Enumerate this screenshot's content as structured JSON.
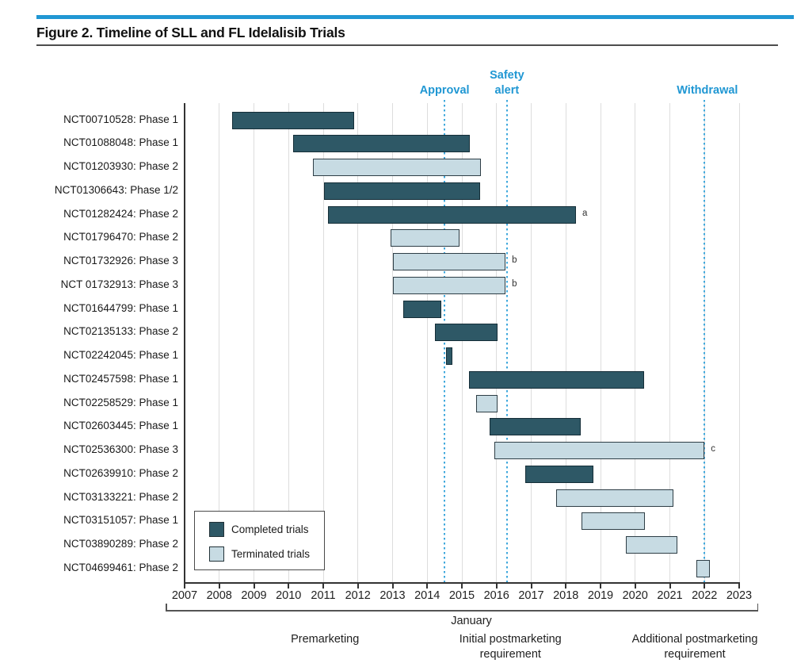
{
  "figure": {
    "title": "Figure 2. Timeline of SLL and FL Idelalisib Trials",
    "accent_color": "#2097d3",
    "dotted_line_color": "#3fa8dc"
  },
  "legend": {
    "items": [
      {
        "label": "Completed trials",
        "status": "completed",
        "color": "#2e5866"
      },
      {
        "label": "Terminated trials",
        "status": "terminated",
        "color": "#c7dbe3"
      }
    ]
  },
  "chart_data": {
    "type": "bar",
    "subtype": "gantt-timeline",
    "title": "Figure 2. Timeline of SLL and FL Idelalisib Trials",
    "x_axis": {
      "sublabel": "January",
      "tick_years": [
        2007,
        2008,
        2009,
        2010,
        2011,
        2012,
        2013,
        2014,
        2015,
        2016,
        2017,
        2018,
        2019,
        2020,
        2021,
        2022,
        2023
      ],
      "range": [
        2007,
        2023
      ],
      "grid": true
    },
    "events": [
      {
        "label": "Approval",
        "year": 2014.5
      },
      {
        "label": "Safety alert",
        "year": 2016.3
      },
      {
        "label": "Withdrawal",
        "year": 2022.0
      }
    ],
    "periods": [
      {
        "label": "Premarketing",
        "center_year": 2011.05
      },
      {
        "label": "Initial postmarketing requirement",
        "center_year": 2016.4
      },
      {
        "label": "Additional postmarketing requirement",
        "center_year": 2021.72
      }
    ],
    "trials": [
      {
        "name": "NCT00710528: Phase 1",
        "start": 2008.37,
        "end": 2011.89,
        "status": "completed",
        "footnote": ""
      },
      {
        "name": "NCT01088048: Phase 1",
        "start": 2010.13,
        "end": 2015.23,
        "status": "completed",
        "footnote": ""
      },
      {
        "name": "NCT01203930: Phase 2",
        "start": 2010.7,
        "end": 2015.54,
        "status": "terminated",
        "footnote": ""
      },
      {
        "name": "NCT01306643: Phase 1/2",
        "start": 2011.03,
        "end": 2015.53,
        "status": "completed",
        "footnote": ""
      },
      {
        "name": "NCT01282424: Phase 2",
        "start": 2011.14,
        "end": 2018.29,
        "status": "completed",
        "footnote": "a"
      },
      {
        "name": "NCT01796470: Phase 2",
        "start": 2012.95,
        "end": 2014.93,
        "status": "terminated",
        "footnote": ""
      },
      {
        "name": "NCT01732926: Phase 3",
        "start": 2013.0,
        "end": 2016.26,
        "status": "terminated",
        "footnote": "b"
      },
      {
        "name": "NCT 01732913: Phase 3",
        "start": 2013.0,
        "end": 2016.26,
        "status": "terminated",
        "footnote": "b"
      },
      {
        "name": "NCT01644799: Phase 1",
        "start": 2013.31,
        "end": 2014.4,
        "status": "completed",
        "footnote": ""
      },
      {
        "name": "NCT02135133: Phase 2",
        "start": 2014.23,
        "end": 2016.02,
        "status": "completed",
        "footnote": ""
      },
      {
        "name": "NCT02242045: Phase 1",
        "start": 2014.54,
        "end": 2014.72,
        "status": "completed",
        "footnote": ""
      },
      {
        "name": "NCT02457598: Phase 1",
        "start": 2015.2,
        "end": 2020.26,
        "status": "completed",
        "footnote": ""
      },
      {
        "name": "NCT02258529: Phase 1",
        "start": 2015.41,
        "end": 2016.02,
        "status": "terminated",
        "footnote": ""
      },
      {
        "name": "NCT02603445: Phase 1",
        "start": 2015.81,
        "end": 2018.43,
        "status": "completed",
        "footnote": ""
      },
      {
        "name": "NCT02536300: Phase 3",
        "start": 2015.94,
        "end": 2022.0,
        "status": "terminated",
        "footnote": "c"
      },
      {
        "name": "NCT02639910: Phase 2",
        "start": 2016.82,
        "end": 2018.8,
        "status": "completed",
        "footnote": ""
      },
      {
        "name": "NCT03133221: Phase 2",
        "start": 2017.72,
        "end": 2021.1,
        "status": "terminated",
        "footnote": ""
      },
      {
        "name": "NCT03151057: Phase 1",
        "start": 2018.46,
        "end": 2020.27,
        "status": "terminated",
        "footnote": ""
      },
      {
        "name": "NCT03890289: Phase 2",
        "start": 2019.72,
        "end": 2021.22,
        "status": "terminated",
        "footnote": ""
      },
      {
        "name": "NCT04699461: Phase 2",
        "start": 2021.77,
        "end": 2022.15,
        "status": "terminated",
        "footnote": ""
      }
    ]
  }
}
